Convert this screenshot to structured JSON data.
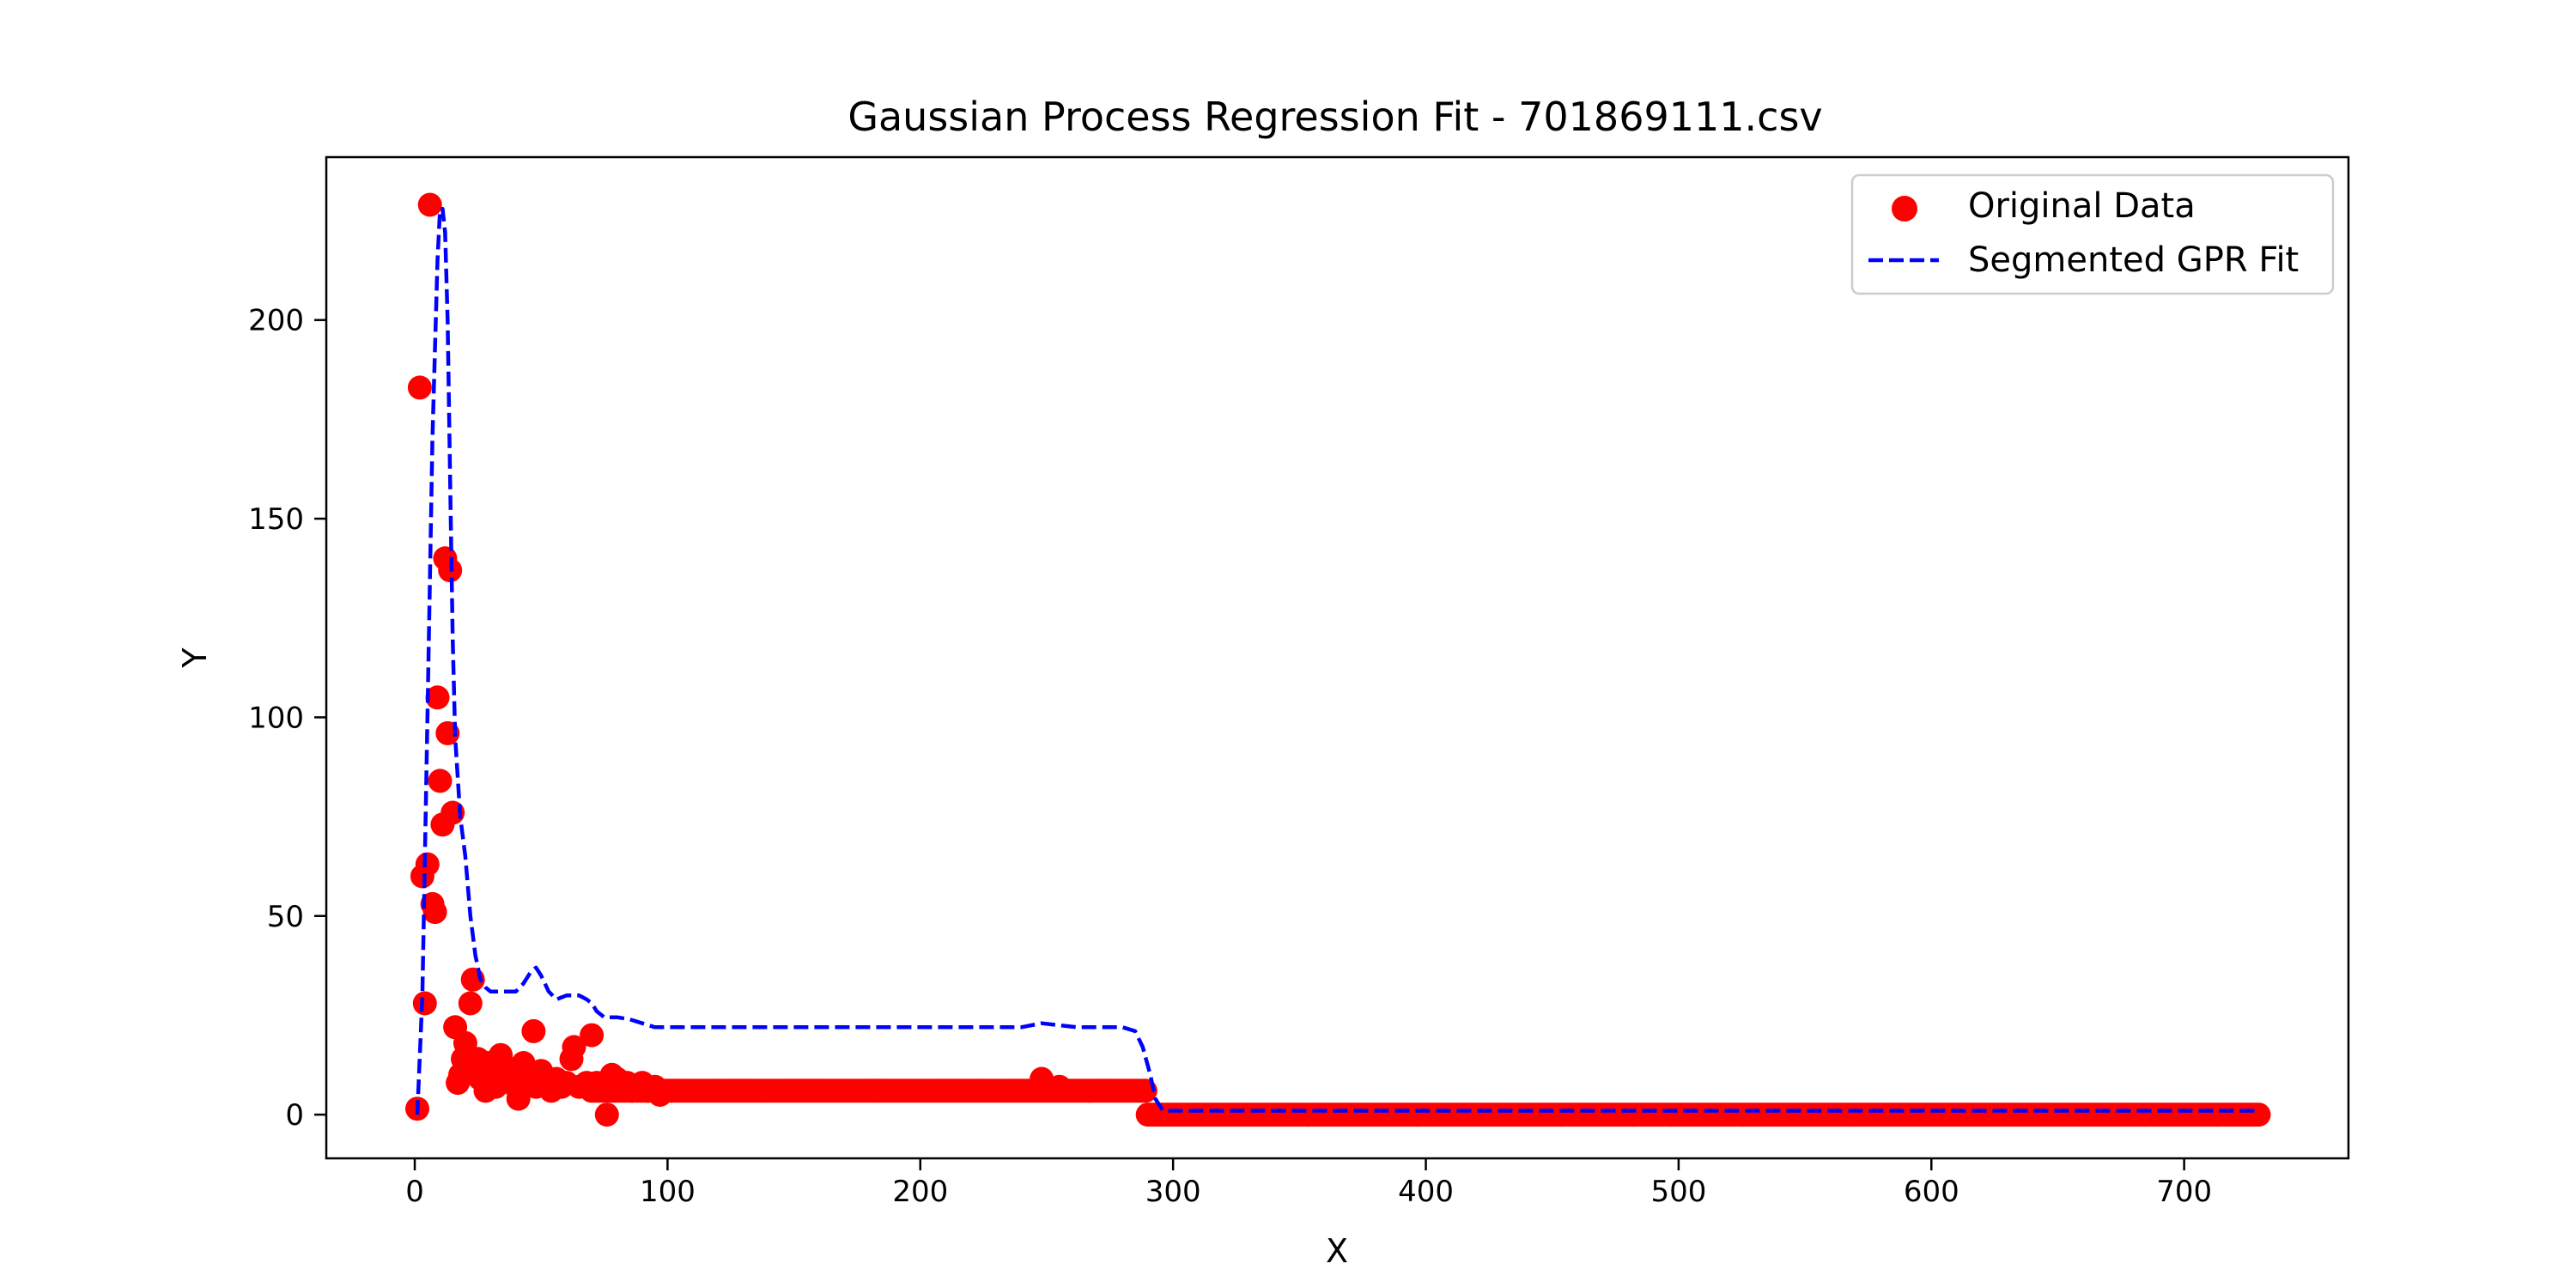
{
  "chart_data": {
    "type": "scatter",
    "title": "Gaussian Process Regression Fit - 701869111.csv",
    "xlabel": "X",
    "ylabel": "Y",
    "xlim": [
      -35,
      765
    ],
    "ylim": [
      -11,
      241
    ],
    "xticks": [
      0,
      100,
      200,
      300,
      400,
      500,
      600,
      700
    ],
    "yticks": [
      0,
      50,
      100,
      150,
      200
    ],
    "grid": false,
    "legend": {
      "placement": "top-right",
      "entries": [
        {
          "label": "Original Data",
          "marker": "circle",
          "color": "#ff0000"
        },
        {
          "label": "Segmented GPR Fit",
          "line": "dashed",
          "color": "#0000ff"
        }
      ]
    },
    "series": [
      {
        "name": "Original Data",
        "kind": "scatter",
        "color": "#ff0000",
        "points": [
          [
            1,
            1.5
          ],
          [
            2,
            183
          ],
          [
            3,
            60
          ],
          [
            4,
            28
          ],
          [
            5,
            63
          ],
          [
            6,
            229
          ],
          [
            7,
            53
          ],
          [
            8,
            51
          ],
          [
            9,
            105
          ],
          [
            10,
            84
          ],
          [
            11,
            73
          ],
          [
            12,
            140
          ],
          [
            13,
            96
          ],
          [
            14,
            137
          ],
          [
            15,
            76
          ],
          [
            16,
            22
          ],
          [
            17,
            8
          ],
          [
            18,
            10
          ],
          [
            19,
            14
          ],
          [
            20,
            18
          ],
          [
            21,
            12
          ],
          [
            22,
            28
          ],
          [
            23,
            34
          ],
          [
            24,
            10
          ],
          [
            25,
            14
          ],
          [
            26,
            9
          ],
          [
            27,
            12
          ],
          [
            28,
            6
          ],
          [
            29,
            13
          ],
          [
            30,
            8
          ],
          [
            31,
            11
          ],
          [
            32,
            7
          ],
          [
            33,
            14
          ],
          [
            34,
            15
          ],
          [
            35,
            9
          ],
          [
            36,
            12
          ],
          [
            38,
            10
          ],
          [
            40,
            7
          ],
          [
            41,
            4
          ],
          [
            42,
            9
          ],
          [
            43,
            13
          ],
          [
            44,
            8
          ],
          [
            46,
            10
          ],
          [
            47,
            21
          ],
          [
            48,
            7
          ],
          [
            50,
            11
          ],
          [
            52,
            8
          ],
          [
            54,
            6
          ],
          [
            56,
            9
          ],
          [
            58,
            7
          ],
          [
            60,
            8
          ],
          [
            62,
            14
          ],
          [
            63,
            17
          ],
          [
            65,
            7
          ],
          [
            68,
            8
          ],
          [
            70,
            20
          ],
          [
            72,
            8
          ],
          [
            74,
            7
          ],
          [
            76,
            0
          ],
          [
            78,
            10
          ],
          [
            80,
            9
          ],
          [
            82,
            7
          ],
          [
            84,
            8
          ],
          [
            86,
            6
          ],
          [
            88,
            7
          ],
          [
            90,
            8
          ],
          [
            92,
            6
          ],
          [
            95,
            7
          ],
          [
            97,
            5
          ],
          [
            248,
            9
          ],
          [
            255,
            7
          ]
        ],
        "plateaus": [
          {
            "x_start": 70,
            "x_end": 290,
            "step": 1.5,
            "y": 6
          },
          {
            "x_start": 290,
            "x_end": 730,
            "step": 1.5,
            "y": 0
          }
        ]
      },
      {
        "name": "Segmented GPR Fit",
        "kind": "line",
        "style": "dashed",
        "color": "#0000ff",
        "points": [
          [
            1,
            0
          ],
          [
            3,
            30
          ],
          [
            5,
            100
          ],
          [
            7,
            170
          ],
          [
            9,
            215
          ],
          [
            10,
            228
          ],
          [
            11,
            228
          ],
          [
            12,
            222
          ],
          [
            13,
            200
          ],
          [
            14,
            160
          ],
          [
            15,
            120
          ],
          [
            16,
            95
          ],
          [
            18,
            75
          ],
          [
            20,
            65
          ],
          [
            22,
            50
          ],
          [
            24,
            40
          ],
          [
            26,
            34
          ],
          [
            28,
            32
          ],
          [
            30,
            31
          ],
          [
            35,
            31
          ],
          [
            40,
            31
          ],
          [
            43,
            33
          ],
          [
            46,
            36
          ],
          [
            48,
            37
          ],
          [
            50,
            35
          ],
          [
            53,
            31
          ],
          [
            56,
            29
          ],
          [
            60,
            30
          ],
          [
            65,
            30
          ],
          [
            68,
            29
          ],
          [
            70,
            28
          ],
          [
            72,
            26
          ],
          [
            75,
            24.5
          ],
          [
            80,
            24.5
          ],
          [
            85,
            24
          ],
          [
            90,
            23
          ],
          [
            95,
            22
          ],
          [
            100,
            22
          ],
          [
            150,
            22
          ],
          [
            200,
            22
          ],
          [
            240,
            22
          ],
          [
            248,
            23
          ],
          [
            255,
            22.5
          ],
          [
            262,
            22
          ],
          [
            270,
            22
          ],
          [
            280,
            22
          ],
          [
            285,
            21
          ],
          [
            288,
            17
          ],
          [
            291,
            10
          ],
          [
            293,
            4
          ],
          [
            296,
            1
          ],
          [
            300,
            1
          ],
          [
            400,
            1
          ],
          [
            500,
            1
          ],
          [
            600,
            1
          ],
          [
            730,
            1
          ]
        ]
      }
    ]
  }
}
